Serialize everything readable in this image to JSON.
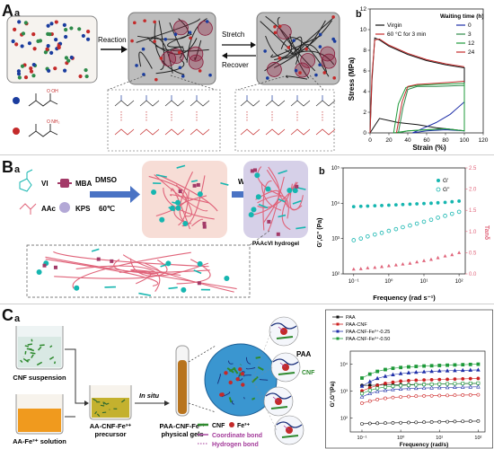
{
  "panelA": {
    "letter": "A",
    "sub_a": "a",
    "sub_b": "b",
    "reaction_label": "Reaction",
    "stretch_label": "Stretch",
    "recover_label": "Recover",
    "monomer1_label": "O OH",
    "monomer2_label": "O NH₂",
    "chart_title": "",
    "ylabel": "Stress (MPa)",
    "xlabel": "Strain (%)",
    "legend_title": "Waiting time (h)",
    "legend": {
      "virgin": "Virgin",
      "heated": "60 °C for 3 min",
      "w0": "0",
      "w3": "3",
      "w12": "12",
      "w24": "24"
    },
    "xticks": [
      "0",
      "20",
      "40",
      "60",
      "80",
      "100",
      "120"
    ],
    "yticks": [
      "0",
      "2",
      "4",
      "6",
      "8",
      "10",
      "12"
    ]
  },
  "panelB": {
    "letter": "B",
    "sub_a": "a",
    "sub_b": "b",
    "vi": "VI",
    "mba": "MBA",
    "aac": "AAc",
    "kps": "KPS",
    "solvent": "DMSO",
    "temp": "60℃",
    "water": "Water",
    "hydrogel": "PAAcVI hydrogel",
    "ylabel": "G',G'' (Pa)",
    "y2label": "Tanδ",
    "xlabel": "Frequency (rad s⁻¹)",
    "legend_g1": "G'",
    "legend_g2": "G''",
    "yticks": [
      "10²",
      "10³",
      "10⁴",
      "10⁵"
    ],
    "y2ticks": [
      "0.0",
      "0.5",
      "1.0",
      "1.5",
      "2.0",
      "2.5"
    ],
    "xticks": [
      "10⁻¹",
      "10⁰",
      "10¹",
      "10²"
    ]
  },
  "panelC": {
    "letter": "C",
    "sub_a": "a",
    "sub_b": "b",
    "cnf_suspension": "CNF suspension",
    "aa_solution": "AA-Fe³⁺ solution",
    "precursor_line1": "AA-CNF-Fe³⁺",
    "precursor_line2": "precursor",
    "in_situ": "In situ",
    "gels_line1": "PAA-CNF-Fe³⁺",
    "gels_line2": "physical gels",
    "cnf_key": "CNF",
    "fe_key": "Fe³⁺",
    "coord_bond": "Coordinate bond",
    "hydrogen_bond": "Hydrogen bond",
    "paa_label": "PAA",
    "cnf_label": "CNF",
    "legend": [
      "PAA",
      "PAA-CNF",
      "PAA-CNF-Fe³⁺-0.25",
      "PAA-CNF-Fe³⁺-0.50"
    ],
    "ylabel": "G',G''(Pa)",
    "xlabel": "Frequency (rad/s)",
    "xticks": [
      "10⁻¹",
      "10⁰",
      "10¹",
      "10²"
    ],
    "yticks": [
      "10⁴",
      "10³",
      "10²"
    ]
  },
  "chart_data": [
    {
      "type": "line",
      "xlabel": "Strain (%)",
      "ylabel": "Stress (MPa)",
      "xlim": [
        0,
        120
      ],
      "ylim": [
        0,
        12
      ],
      "series": [
        {
          "name": "Virgin",
          "x": [
            0,
            2,
            5,
            10,
            20,
            40,
            60,
            80,
            100,
            100,
            90,
            70,
            50,
            30,
            10,
            0
          ],
          "y": [
            0,
            5,
            9.2,
            9.0,
            8.4,
            7.6,
            7.0,
            6.6,
            6.3,
            0.2,
            0.3,
            0.5,
            0.8,
            1.0,
            1.4,
            0
          ]
        },
        {
          "name": "60 °C for 3 min",
          "x": [
            0,
            2,
            5,
            10,
            20,
            40,
            60,
            80,
            100
          ],
          "y": [
            0,
            5.5,
            9.0,
            9.1,
            8.5,
            7.7,
            7.1,
            6.7,
            6.4
          ]
        },
        {
          "name": "0",
          "x": [
            45,
            55,
            70,
            85,
            100,
            100,
            80,
            60,
            45
          ],
          "y": [
            0,
            0.4,
            1.0,
            1.8,
            3.0,
            0.2,
            0.3,
            0.2,
            0
          ]
        },
        {
          "name": "3",
          "x": [
            30,
            35,
            40,
            50,
            70,
            100,
            100,
            80,
            60,
            40,
            30
          ],
          "y": [
            0,
            2.5,
            4.2,
            4.5,
            4.5,
            4.6,
            0.2,
            0.4,
            0.3,
            0.2,
            0
          ]
        },
        {
          "name": "12",
          "x": [
            25,
            30,
            38,
            50,
            70,
            100,
            100,
            80,
            60,
            40,
            25
          ],
          "y": [
            0,
            2.8,
            4.4,
            4.6,
            4.7,
            4.8,
            0.2,
            0.4,
            0.3,
            0.2,
            0
          ]
        },
        {
          "name": "24",
          "x": [
            28,
            34,
            40,
            50,
            70,
            100
          ],
          "y": [
            0,
            3.0,
            4.5,
            4.7,
            4.8,
            5.0
          ]
        }
      ]
    },
    {
      "type": "scatter",
      "xlabel": "Frequency (rad s⁻¹)",
      "ylabel": "G',G'' (Pa)",
      "xscale": "log",
      "yscale": "log",
      "xlim": [
        0.05,
        150
      ],
      "ylim": [
        100,
        100000
      ],
      "y2label": "Tanδ",
      "y2lim": [
        0,
        2.5
      ],
      "series": [
        {
          "name": "G'",
          "x": [
            0.1,
            0.16,
            0.25,
            0.4,
            0.63,
            1,
            1.6,
            2.5,
            4,
            6.3,
            10,
            16,
            25,
            40,
            63,
            100
          ],
          "y": [
            8000,
            8200,
            8300,
            8500,
            8600,
            8800,
            9000,
            9200,
            9400,
            9600,
            9800,
            10000,
            10300,
            10600,
            11000,
            11500
          ]
        },
        {
          "name": "G''",
          "x": [
            0.1,
            0.16,
            0.25,
            0.4,
            0.63,
            1,
            1.6,
            2.5,
            4,
            6.3,
            10,
            16,
            25,
            40,
            63,
            100
          ],
          "y": [
            900,
            1000,
            1150,
            1300,
            1450,
            1650,
            1850,
            2100,
            2350,
            2650,
            3000,
            3400,
            3900,
            4400,
            5000,
            5700
          ]
        },
        {
          "name": "Tanδ",
          "axis": "y2",
          "x": [
            0.1,
            0.16,
            0.25,
            0.4,
            0.63,
            1,
            1.6,
            2.5,
            4,
            6.3,
            10,
            16,
            25,
            40,
            63,
            100
          ],
          "y": [
            0.11,
            0.12,
            0.14,
            0.15,
            0.17,
            0.19,
            0.21,
            0.23,
            0.25,
            0.28,
            0.31,
            0.34,
            0.38,
            0.42,
            0.45,
            0.5
          ]
        }
      ]
    },
    {
      "type": "scatter",
      "xlabel": "Frequency (rad/s)",
      "ylabel": "G',G''(Pa)",
      "xscale": "log",
      "yscale": "log",
      "xlim": [
        0.05,
        150
      ],
      "ylim": [
        30,
        30000
      ],
      "series": [
        {
          "name": "PAA G'",
          "color": "#111111",
          "filled": true,
          "x": [
            0.1,
            0.16,
            0.25,
            0.4,
            0.63,
            1,
            1.6,
            2.5,
            4,
            6.3,
            10,
            16,
            25,
            40,
            63,
            100
          ],
          "y": [
            1600,
            1620,
            1640,
            1660,
            1680,
            1700,
            1720,
            1740,
            1760,
            1780,
            1800,
            1820,
            1840,
            1860,
            1880,
            1900
          ]
        },
        {
          "name": "PAA G''",
          "color": "#111111",
          "filled": false,
          "x": [
            0.1,
            0.16,
            0.25,
            0.4,
            0.63,
            1,
            1.6,
            2.5,
            4,
            6.3,
            10,
            16,
            25,
            40,
            63,
            100
          ],
          "y": [
            60,
            62,
            63,
            64,
            65,
            66,
            67,
            68,
            69,
            70,
            71,
            72,
            73,
            74,
            75,
            76
          ]
        },
        {
          "name": "PAA-CNF G'",
          "color": "#cc2222",
          "filled": true,
          "x": [
            0.1,
            0.16,
            0.25,
            0.4,
            0.63,
            1,
            1.6,
            2.5,
            4,
            6.3,
            10,
            16,
            25,
            40,
            63,
            100
          ],
          "y": [
            1000,
            1300,
            1600,
            1900,
            2100,
            2300,
            2400,
            2500,
            2550,
            2600,
            2650,
            2700,
            2750,
            2800,
            2850,
            2900
          ]
        },
        {
          "name": "PAA-CNF G''",
          "color": "#cc2222",
          "filled": false,
          "x": [
            0.1,
            0.16,
            0.25,
            0.4,
            0.63,
            1,
            1.6,
            2.5,
            4,
            6.3,
            10,
            16,
            25,
            40,
            63,
            100
          ],
          "y": [
            350,
            420,
            480,
            530,
            570,
            600,
            620,
            640,
            650,
            660,
            670,
            680,
            690,
            700,
            710,
            720
          ]
        },
        {
          "name": "PAA-CNF-Fe³⁺-0.25 G'",
          "color": "#1f2fa8",
          "filled": true,
          "x": [
            0.1,
            0.16,
            0.25,
            0.4,
            0.63,
            1,
            1.6,
            2.5,
            4,
            6.3,
            10,
            16,
            25,
            40,
            63,
            100
          ],
          "y": [
            1500,
            2200,
            2900,
            3500,
            4000,
            4400,
            4700,
            4900,
            5100,
            5300,
            5500,
            5600,
            5700,
            5800,
            5900,
            6000
          ]
        },
        {
          "name": "PAA-CNF-Fe³⁺-0.25 G''",
          "color": "#1f2fa8",
          "filled": false,
          "x": [
            0.1,
            0.16,
            0.25,
            0.4,
            0.63,
            1,
            1.6,
            2.5,
            4,
            6.3,
            10,
            16,
            25,
            40,
            63,
            100
          ],
          "y": [
            600,
            800,
            950,
            1050,
            1120,
            1180,
            1220,
            1250,
            1280,
            1300,
            1320,
            1340,
            1360,
            1380,
            1400,
            1420
          ]
        },
        {
          "name": "PAA-CNF-Fe³⁺-0.50 G'",
          "color": "#1e9a3a",
          "filled": true,
          "x": [
            0.1,
            0.16,
            0.25,
            0.4,
            0.63,
            1,
            1.6,
            2.5,
            4,
            6.3,
            10,
            16,
            25,
            40,
            63,
            100
          ],
          "y": [
            3000,
            4200,
            5300,
            6200,
            6900,
            7400,
            7800,
            8100,
            8400,
            8600,
            8800,
            9000,
            9200,
            9400,
            9600,
            9800
          ]
        },
        {
          "name": "PAA-CNF-Fe³⁺-0.50 G''",
          "color": "#1e9a3a",
          "filled": false,
          "x": [
            0.1,
            0.16,
            0.25,
            0.4,
            0.63,
            1,
            1.6,
            2.5,
            4,
            6.3,
            10,
            16,
            25,
            40,
            63,
            100
          ],
          "y": [
            800,
            1050,
            1250,
            1400,
            1500,
            1580,
            1640,
            1690,
            1730,
            1760,
            1790,
            1820,
            1850,
            1880,
            1910,
            1940
          ]
        }
      ]
    }
  ],
  "colors": {
    "blue_dot": "#1a3c9e",
    "red_dot": "#c42a2a",
    "teal": "#16b6b0",
    "pink": "#e0647a",
    "purple_box": "#d6d0e8"
  }
}
